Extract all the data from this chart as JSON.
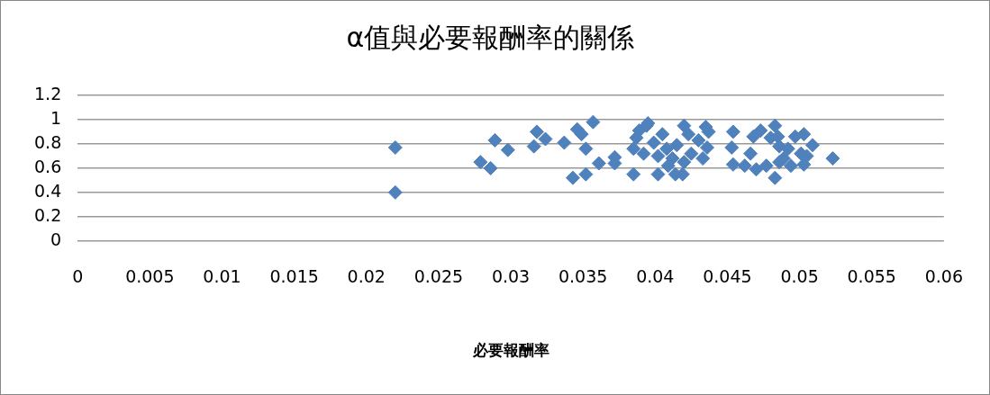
{
  "chart_data": {
    "type": "scatter",
    "title": "α值與必要報酬率的關係",
    "xlabel": "必要報酬率",
    "marker": "diamond",
    "grid": "y",
    "legend": false,
    "xlim": [
      0,
      0.06
    ],
    "xticks": [
      0,
      0.005,
      0.01,
      0.015,
      0.02,
      0.025,
      0.03,
      0.035,
      0.04,
      0.045,
      0.05,
      0.055,
      0.06
    ],
    "ylim": [
      0,
      1.2
    ],
    "yticks": [
      0,
      0.2,
      0.4,
      0.6,
      0.8,
      1,
      1.2
    ],
    "series": [
      {
        "color": "#4f81bd",
        "x": [
          0.022,
          0.022,
          0.0279,
          0.0286,
          0.0289,
          0.0298,
          0.0316,
          0.0318,
          0.0324,
          0.0337,
          0.0343,
          0.0346,
          0.0349,
          0.0352,
          0.0352,
          0.0357,
          0.0361,
          0.0372,
          0.0372,
          0.0385,
          0.0385,
          0.0387,
          0.0389,
          0.0394,
          0.0395,
          0.0392,
          0.0399,
          0.0402,
          0.0402,
          0.0405,
          0.0408,
          0.0409,
          0.0412,
          0.0414,
          0.0415,
          0.0419,
          0.042,
          0.042,
          0.0423,
          0.0425,
          0.043,
          0.0433,
          0.0435,
          0.0436,
          0.0437,
          0.0454,
          0.0453,
          0.0454,
          0.0462,
          0.0468,
          0.047,
          0.0466,
          0.0473,
          0.0477,
          0.048,
          0.0483,
          0.0485,
          0.0483,
          0.0486,
          0.0486,
          0.0489,
          0.0492,
          0.0494,
          0.0497,
          0.0501,
          0.0503,
          0.0503,
          0.0509,
          0.0505,
          0.0523
        ],
        "values": [
          0.77,
          0.4,
          0.65,
          0.6,
          0.83,
          0.75,
          0.78,
          0.9,
          0.84,
          0.81,
          0.52,
          0.92,
          0.88,
          0.55,
          0.76,
          0.98,
          0.64,
          0.69,
          0.64,
          0.55,
          0.76,
          0.85,
          0.91,
          0.95,
          0.97,
          0.72,
          0.81,
          0.7,
          0.55,
          0.88,
          0.76,
          0.62,
          0.68,
          0.55,
          0.79,
          0.55,
          0.65,
          0.95,
          0.88,
          0.72,
          0.83,
          0.68,
          0.94,
          0.77,
          0.9,
          0.9,
          0.77,
          0.63,
          0.62,
          0.86,
          0.59,
          0.72,
          0.91,
          0.62,
          0.85,
          0.95,
          0.86,
          0.52,
          0.78,
          0.65,
          0.68,
          0.76,
          0.62,
          0.86,
          0.72,
          0.63,
          0.88,
          0.79,
          0.7,
          0.68
        ]
      }
    ]
  }
}
